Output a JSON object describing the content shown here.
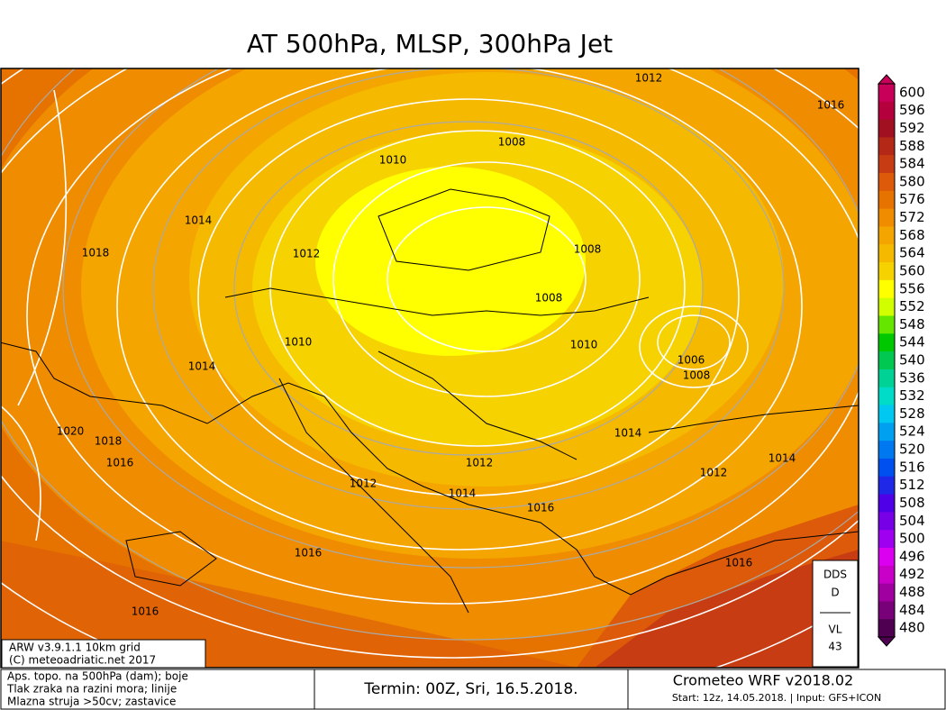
{
  "title": "AT 500hPa, MLSP, 300hPa Jet",
  "isobar_labels": [
    "1012",
    "1016",
    "1008",
    "1010",
    "1014",
    "1018",
    "1012",
    "1008",
    "1008",
    "1010",
    "1014",
    "1010",
    "1006",
    "1008",
    "1020",
    "1018",
    "1016",
    "1014",
    "1012",
    "1014",
    "1012",
    "1012",
    "1014",
    "1016",
    "1016",
    "1016",
    "1016"
  ],
  "colorbar": {
    "labels": [
      "600",
      "596",
      "592",
      "588",
      "584",
      "580",
      "576",
      "572",
      "568",
      "564",
      "560",
      "556",
      "552",
      "548",
      "544",
      "540",
      "536",
      "532",
      "528",
      "524",
      "520",
      "516",
      "512",
      "508",
      "504",
      "500",
      "496",
      "492",
      "488",
      "484",
      "480"
    ],
    "colors": [
      "#c8005a",
      "#b4003c",
      "#a01020",
      "#b42818",
      "#c83c14",
      "#dc5a0a",
      "#e67300",
      "#f08c00",
      "#f5a500",
      "#f5b900",
      "#f5d200",
      "#ffff00",
      "#d2ff00",
      "#64e600",
      "#00c800",
      "#00c850",
      "#00d296",
      "#00dcc8",
      "#00c8f0",
      "#00a0f0",
      "#0078f0",
      "#0050f0",
      "#1e28e6",
      "#5000e6",
      "#7800e6",
      "#a000f0",
      "#dc00f0",
      "#c800c8",
      "#a000a0",
      "#780078",
      "#500050"
    ]
  },
  "model_box": {
    "line1": "ARW v3.9.1.1 10km grid",
    "line2": "(C) meteoadriatic.net 2017"
  },
  "legend": [
    "Aps. topo. na 500hPa (dam); boje",
    "Tlak zraka na razini mora; linije",
    "Mlazna struja >50cv; zastavice"
  ],
  "termin": "Termin: 00Z, Sri, 16.5.2018.",
  "crometeo": {
    "name": "Crometeo WRF v2018.02",
    "start": "Start: 12z, 14.05.2018. | Input: GFS+ICON"
  },
  "side_box": {
    "top1": "DDS",
    "top2": "D",
    "bottom1": "VL",
    "bottom2": "43"
  }
}
